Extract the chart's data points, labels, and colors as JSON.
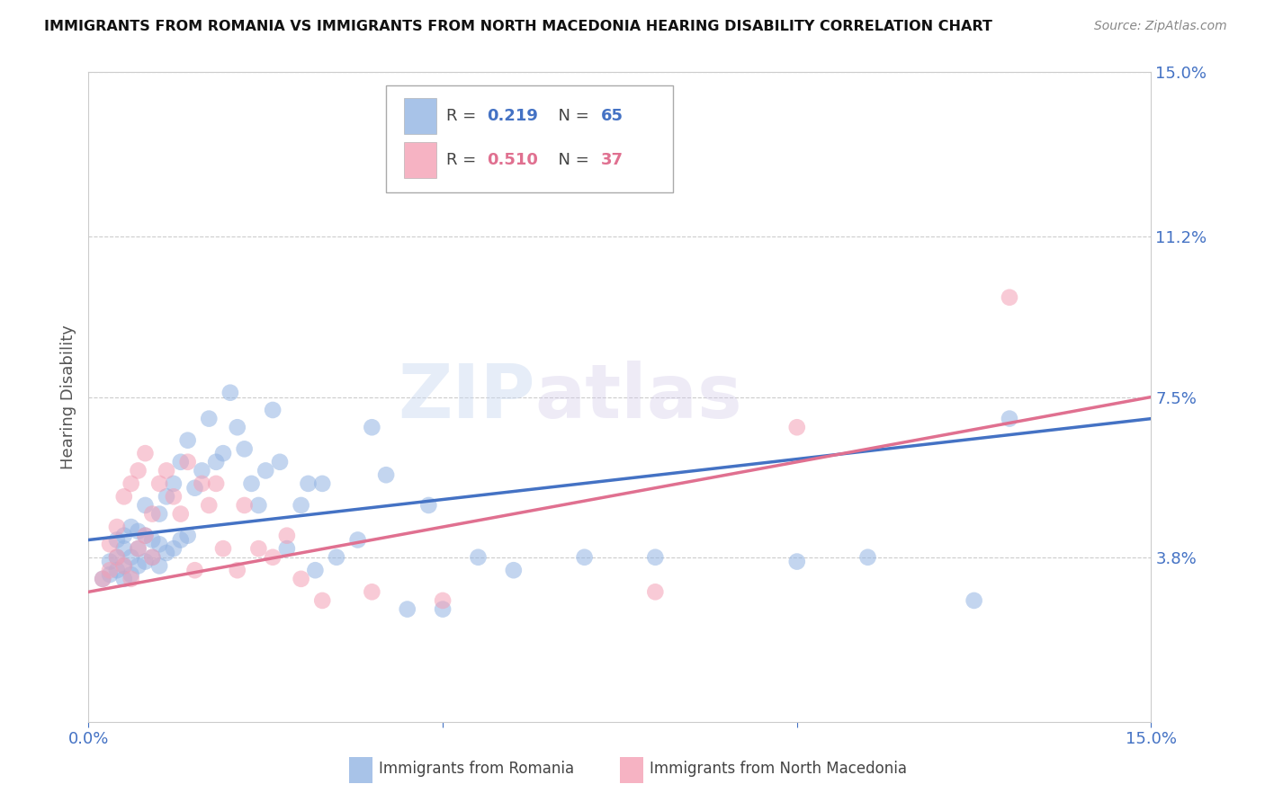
{
  "title": "IMMIGRANTS FROM ROMANIA VS IMMIGRANTS FROM NORTH MACEDONIA HEARING DISABILITY CORRELATION CHART",
  "source": "Source: ZipAtlas.com",
  "ylabel": "Hearing Disability",
  "xlim": [
    0.0,
    0.15
  ],
  "ylim": [
    0.0,
    0.15
  ],
  "ytick_labels_right": [
    "3.8%",
    "7.5%",
    "11.2%",
    "15.0%"
  ],
  "ytick_vals": [
    0.038,
    0.075,
    0.112,
    0.15
  ],
  "romania_R": 0.219,
  "romania_N": 65,
  "macedonia_R": 0.51,
  "macedonia_N": 37,
  "romania_color": "#92b4e3",
  "macedonia_color": "#f4a0b5",
  "romania_line_color": "#4472c4",
  "macedonia_line_color": "#e07090",
  "background_color": "#ffffff",
  "grid_color": "#cccccc",
  "watermark_left": "ZIP",
  "watermark_right": "atlas",
  "romania_x": [
    0.002,
    0.003,
    0.003,
    0.004,
    0.004,
    0.004,
    0.005,
    0.005,
    0.005,
    0.005,
    0.006,
    0.006,
    0.006,
    0.007,
    0.007,
    0.007,
    0.008,
    0.008,
    0.008,
    0.009,
    0.009,
    0.01,
    0.01,
    0.01,
    0.011,
    0.011,
    0.012,
    0.012,
    0.013,
    0.013,
    0.014,
    0.014,
    0.015,
    0.016,
    0.017,
    0.018,
    0.019,
    0.02,
    0.021,
    0.022,
    0.023,
    0.024,
    0.025,
    0.026,
    0.027,
    0.028,
    0.03,
    0.031,
    0.032,
    0.033,
    0.035,
    0.038,
    0.04,
    0.042,
    0.045,
    0.048,
    0.05,
    0.055,
    0.06,
    0.07,
    0.08,
    0.1,
    0.11,
    0.125,
    0.13
  ],
  "romania_y": [
    0.033,
    0.034,
    0.037,
    0.035,
    0.038,
    0.042,
    0.033,
    0.036,
    0.04,
    0.043,
    0.034,
    0.038,
    0.045,
    0.036,
    0.04,
    0.044,
    0.037,
    0.043,
    0.05,
    0.038,
    0.042,
    0.036,
    0.041,
    0.048,
    0.039,
    0.052,
    0.04,
    0.055,
    0.042,
    0.06,
    0.043,
    0.065,
    0.054,
    0.058,
    0.07,
    0.06,
    0.062,
    0.076,
    0.068,
    0.063,
    0.055,
    0.05,
    0.058,
    0.072,
    0.06,
    0.04,
    0.05,
    0.055,
    0.035,
    0.055,
    0.038,
    0.042,
    0.068,
    0.057,
    0.026,
    0.05,
    0.026,
    0.038,
    0.035,
    0.038,
    0.038,
    0.037,
    0.038,
    0.028,
    0.07
  ],
  "macedonia_x": [
    0.002,
    0.003,
    0.003,
    0.004,
    0.004,
    0.005,
    0.005,
    0.006,
    0.006,
    0.007,
    0.007,
    0.008,
    0.008,
    0.009,
    0.009,
    0.01,
    0.011,
    0.012,
    0.013,
    0.014,
    0.015,
    0.016,
    0.017,
    0.018,
    0.019,
    0.021,
    0.022,
    0.024,
    0.026,
    0.028,
    0.03,
    0.033,
    0.04,
    0.05,
    0.08,
    0.1,
    0.13
  ],
  "macedonia_y": [
    0.033,
    0.035,
    0.041,
    0.038,
    0.045,
    0.036,
    0.052,
    0.033,
    0.055,
    0.04,
    0.058,
    0.043,
    0.062,
    0.038,
    0.048,
    0.055,
    0.058,
    0.052,
    0.048,
    0.06,
    0.035,
    0.055,
    0.05,
    0.055,
    0.04,
    0.035,
    0.05,
    0.04,
    0.038,
    0.043,
    0.033,
    0.028,
    0.03,
    0.028,
    0.03,
    0.068,
    0.098
  ]
}
